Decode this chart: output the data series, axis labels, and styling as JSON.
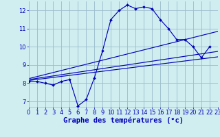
{
  "xlabel": "Graphe des températures (°c)",
  "bg_color": "#d0eef0",
  "grid_color": "#99bbcc",
  "line_color": "#0000bb",
  "xlim": [
    0,
    23
  ],
  "ylim": [
    6.7,
    12.5
  ],
  "xticks": [
    0,
    1,
    2,
    3,
    4,
    5,
    6,
    7,
    8,
    9,
    10,
    11,
    12,
    13,
    14,
    15,
    16,
    17,
    18,
    19,
    20,
    21,
    22,
    23
  ],
  "yticks": [
    7,
    8,
    9,
    10,
    11,
    12
  ],
  "curve_x": [
    0,
    1,
    2,
    3,
    4,
    5,
    6,
    7,
    8,
    9,
    10,
    11,
    12,
    13,
    14,
    15,
    16,
    17,
    18,
    19,
    20,
    21,
    22
  ],
  "curve_y": [
    8.1,
    8.1,
    8.0,
    7.9,
    8.1,
    8.2,
    6.75,
    7.1,
    8.3,
    9.8,
    11.5,
    12.0,
    12.3,
    12.1,
    12.2,
    12.1,
    11.5,
    11.0,
    10.4,
    10.4,
    10.0,
    9.4,
    10.0
  ],
  "trend1_x": [
    0,
    23
  ],
  "trend1_y": [
    8.25,
    10.85
  ],
  "trend2_x": [
    0,
    23
  ],
  "trend2_y": [
    8.2,
    9.75
  ],
  "trend3_x": [
    0,
    23
  ],
  "trend3_y": [
    8.15,
    9.45
  ],
  "tick_fontsize": 6,
  "label_fontsize": 7.5
}
